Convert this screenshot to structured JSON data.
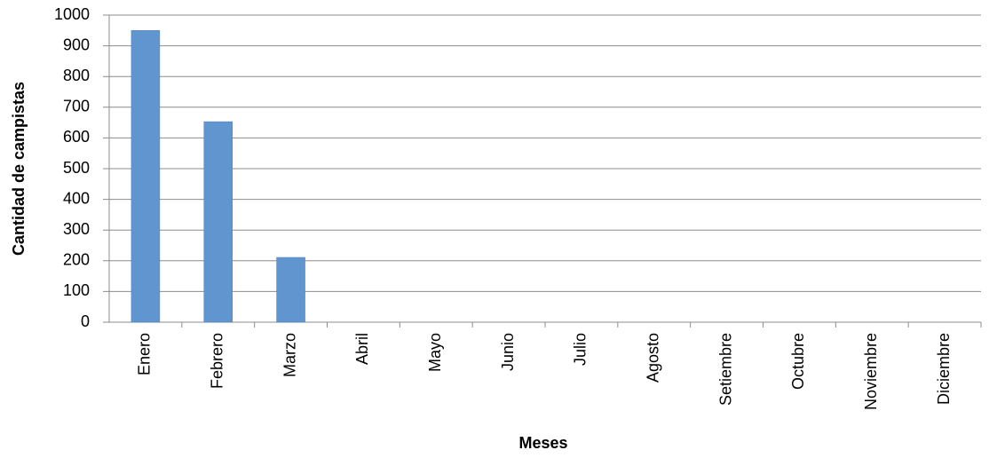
{
  "chart_data": {
    "type": "bar",
    "x_label": "Meses",
    "y_label": "Cantidad de campistas",
    "categories": [
      "Enero",
      "Febrero",
      "Marzo",
      "Abril",
      "Mayo",
      "Junio",
      "Julio",
      "Agosto",
      "Setiembre",
      "Octubre",
      "Noviembre",
      "Diciembre"
    ],
    "values": [
      950,
      653,
      211,
      0,
      0,
      0,
      0,
      0,
      0,
      0,
      0,
      0
    ],
    "color": "#6195cf",
    "ylim": [
      0,
      1000
    ],
    "yticks": [
      0,
      100,
      200,
      300,
      400,
      500,
      600,
      700,
      800,
      900,
      1000
    ],
    "grid": true
  }
}
